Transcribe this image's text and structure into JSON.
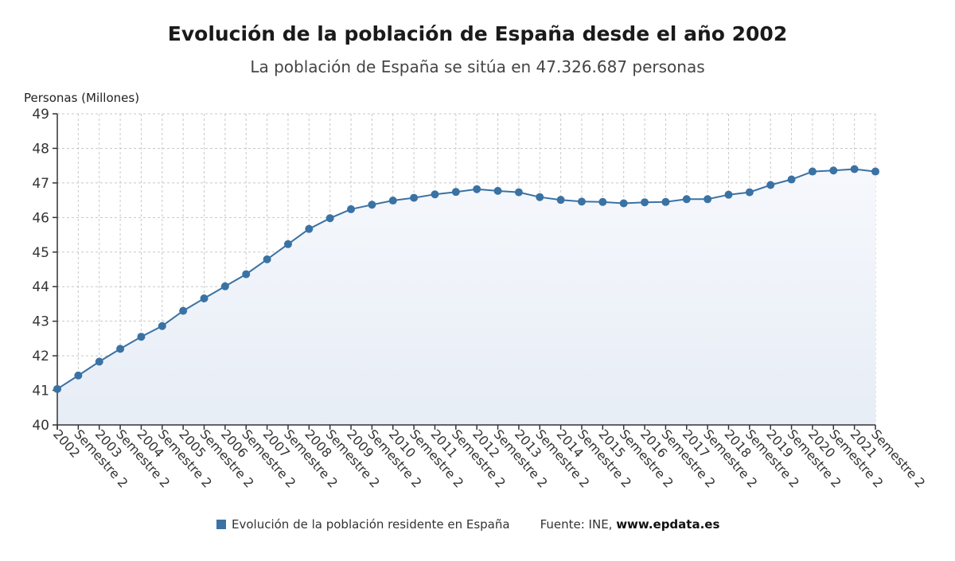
{
  "title": "Evolución de la población de España desde el año 2002",
  "subtitle": "La población de España se sitúa en 47.326.687 personas",
  "legend": {
    "series_label": "Evolución de la población residente en España",
    "source_prefix": "Fuente: INE, ",
    "source_site": "www.epdata.es"
  },
  "colors": {
    "line": "#3a72a4",
    "grid": "#c8c8c8",
    "fill_top": "#f6f8fc",
    "fill_bottom": "#e7edf6"
  },
  "chart_data": {
    "type": "area",
    "ylabel": "Personas (Millones)",
    "xlabel": "",
    "ylim": [
      40,
      49
    ],
    "yticks": [
      40,
      41,
      42,
      43,
      44,
      45,
      46,
      47,
      48,
      49
    ],
    "grid": true,
    "tick_labels": [
      "2002",
      "Semestre 2",
      "2003",
      "Semestre 2",
      "2004",
      "Semestre 2",
      "2005",
      "Semestre 2",
      "2006",
      "Semestre 2",
      "2007",
      "Semestre 2",
      "2008",
      "Semestre 2",
      "2009",
      "Semestre 2",
      "2010",
      "Semestre 2",
      "2011",
      "Semestre 2",
      "2012",
      "Semestre 2",
      "2013",
      "Semestre 2",
      "2014",
      "Semestre 2",
      "2015",
      "Semestre 2",
      "2016",
      "Semestre 2",
      "2017",
      "Semestre 2",
      "2018",
      "Semestre 2",
      "2019",
      "Semestre 2",
      "2020",
      "Semestre 2",
      "2021",
      "Semestre 2"
    ],
    "series": [
      {
        "name": "Evolución de la población residente en España",
        "values": [
          41.04,
          41.43,
          41.83,
          42.2,
          42.55,
          42.86,
          43.3,
          43.66,
          44.01,
          44.36,
          44.79,
          45.23,
          45.67,
          45.98,
          46.24,
          46.37,
          46.49,
          46.57,
          46.67,
          46.74,
          46.82,
          46.77,
          46.73,
          46.59,
          46.51,
          46.46,
          46.45,
          46.41,
          46.44,
          46.45,
          46.53,
          46.53,
          46.66,
          46.73,
          46.94,
          47.1,
          47.33,
          47.36,
          47.4,
          47.33
        ]
      }
    ]
  }
}
